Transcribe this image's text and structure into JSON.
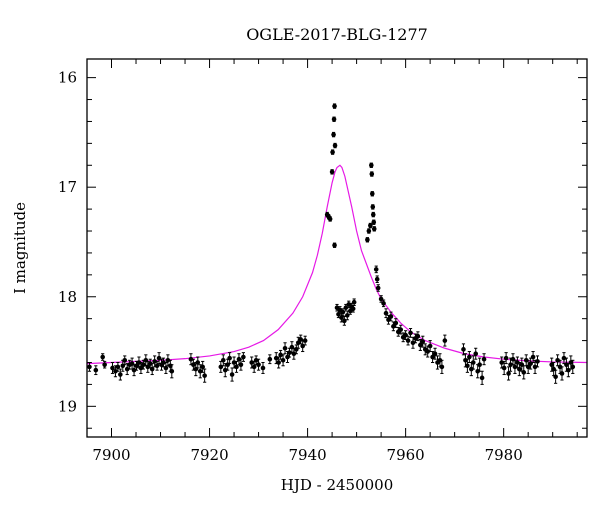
{
  "chart_data": {
    "type": "scatter",
    "title": "OGLE-2017-BLG-1277",
    "xlabel": "HJD - 2450000",
    "ylabel": "I magnitude",
    "xlim": [
      7895,
      7997
    ],
    "ylim": [
      19.28,
      15.83
    ],
    "y_inverted": true,
    "grid": false,
    "legend": "none",
    "x_ticks": [
      7900,
      7920,
      7940,
      7960,
      7980
    ],
    "y_ticks": [
      16,
      17,
      18,
      19
    ],
    "colors": {
      "data": "#000000",
      "model": "#e619e6",
      "frame": "#000000"
    },
    "series": [
      {
        "kind": "data_with_errors",
        "points": [
          [
            7895.5,
            18.64,
            0.04
          ],
          [
            7896.8,
            18.67,
            0.04
          ],
          [
            7898.2,
            18.55,
            0.03
          ],
          [
            7898.6,
            18.62,
            0.03
          ],
          [
            7900.2,
            18.65,
            0.05
          ],
          [
            7900.8,
            18.68,
            0.05
          ],
          [
            7901.3,
            18.64,
            0.04
          ],
          [
            7901.8,
            18.71,
            0.05
          ],
          [
            7902.3,
            18.63,
            0.05
          ],
          [
            7902.7,
            18.58,
            0.04
          ],
          [
            7903.2,
            18.66,
            0.05
          ],
          [
            7903.7,
            18.62,
            0.04
          ],
          [
            7904.2,
            18.61,
            0.05
          ],
          [
            7904.6,
            18.67,
            0.05
          ],
          [
            7905.1,
            18.63,
            0.04
          ],
          [
            7905.6,
            18.6,
            0.05
          ],
          [
            7906.0,
            18.65,
            0.05
          ],
          [
            7906.5,
            18.62,
            0.04
          ],
          [
            7907.0,
            18.58,
            0.05
          ],
          [
            7907.4,
            18.64,
            0.05
          ],
          [
            7907.9,
            18.61,
            0.04
          ],
          [
            7908.3,
            18.66,
            0.05
          ],
          [
            7908.8,
            18.59,
            0.05
          ],
          [
            7909.3,
            18.63,
            0.04
          ],
          [
            7909.7,
            18.56,
            0.05
          ],
          [
            7910.2,
            18.62,
            0.05
          ],
          [
            7910.6,
            18.6,
            0.04
          ],
          [
            7911.1,
            18.65,
            0.05
          ],
          [
            7911.5,
            18.58,
            0.05
          ],
          [
            7912.0,
            18.63,
            0.05
          ],
          [
            7912.3,
            18.68,
            0.06
          ],
          [
            7916.2,
            18.57,
            0.05
          ],
          [
            7916.7,
            18.62,
            0.05
          ],
          [
            7917.2,
            18.66,
            0.06
          ],
          [
            7917.6,
            18.6,
            0.05
          ],
          [
            7918.1,
            18.68,
            0.06
          ],
          [
            7918.6,
            18.64,
            0.05
          ],
          [
            7919.0,
            18.72,
            0.06
          ],
          [
            7922.3,
            18.64,
            0.05
          ],
          [
            7922.8,
            18.58,
            0.05
          ],
          [
            7923.2,
            18.67,
            0.06
          ],
          [
            7923.7,
            18.62,
            0.05
          ],
          [
            7924.1,
            18.56,
            0.05
          ],
          [
            7924.6,
            18.71,
            0.06
          ],
          [
            7925.0,
            18.6,
            0.05
          ],
          [
            7925.5,
            18.64,
            0.05
          ],
          [
            7926.0,
            18.57,
            0.05
          ],
          [
            7926.4,
            18.62,
            0.05
          ],
          [
            7926.9,
            18.55,
            0.04
          ],
          [
            7928.6,
            18.6,
            0.05
          ],
          [
            7929.1,
            18.64,
            0.05
          ],
          [
            7929.5,
            18.58,
            0.04
          ],
          [
            7930.0,
            18.62,
            0.05
          ],
          [
            7930.9,
            18.65,
            0.05
          ],
          [
            7932.3,
            18.57,
            0.04
          ],
          [
            7933.6,
            18.56,
            0.05
          ],
          [
            7934.1,
            18.6,
            0.05
          ],
          [
            7934.5,
            18.53,
            0.04
          ],
          [
            7935.0,
            18.58,
            0.05
          ],
          [
            7935.4,
            18.47,
            0.05
          ],
          [
            7935.9,
            18.55,
            0.05
          ],
          [
            7936.3,
            18.51,
            0.04
          ],
          [
            7936.8,
            18.46,
            0.05
          ],
          [
            7937.2,
            18.52,
            0.05
          ],
          [
            7937.7,
            18.48,
            0.04
          ],
          [
            7938.1,
            18.42,
            0.05
          ],
          [
            7938.6,
            18.39,
            0.04
          ],
          [
            7939.0,
            18.45,
            0.05
          ],
          [
            7939.5,
            18.4,
            0.04
          ],
          [
            7944.0,
            17.25,
            0.02
          ],
          [
            7944.3,
            17.27,
            0.02
          ],
          [
            7944.6,
            17.29,
            0.02
          ],
          [
            7945.0,
            16.86,
            0.02
          ],
          [
            7945.1,
            16.68,
            0.02
          ],
          [
            7945.3,
            16.52,
            0.02
          ],
          [
            7945.4,
            16.38,
            0.02
          ],
          [
            7945.5,
            16.26,
            0.02
          ],
          [
            7945.6,
            16.62,
            0.02
          ],
          [
            7945.5,
            17.53,
            0.02
          ],
          [
            7946.0,
            18.1,
            0.03
          ],
          [
            7946.3,
            18.16,
            0.03
          ],
          [
            7946.6,
            18.12,
            0.03
          ],
          [
            7946.9,
            18.19,
            0.04
          ],
          [
            7947.2,
            18.14,
            0.03
          ],
          [
            7947.5,
            18.22,
            0.04
          ],
          [
            7947.8,
            18.1,
            0.03
          ],
          [
            7948.1,
            18.17,
            0.04
          ],
          [
            7948.4,
            18.07,
            0.03
          ],
          [
            7948.7,
            18.13,
            0.03
          ],
          [
            7949.0,
            18.09,
            0.03
          ],
          [
            7949.3,
            18.11,
            0.03
          ],
          [
            7949.5,
            18.05,
            0.03
          ],
          [
            7952.2,
            17.48,
            0.02
          ],
          [
            7952.5,
            17.4,
            0.02
          ],
          [
            7952.8,
            17.35,
            0.02
          ],
          [
            7953.0,
            16.8,
            0.02
          ],
          [
            7953.1,
            16.88,
            0.02
          ],
          [
            7953.2,
            17.06,
            0.02
          ],
          [
            7953.3,
            17.18,
            0.02
          ],
          [
            7953.4,
            17.25,
            0.02
          ],
          [
            7953.5,
            17.32,
            0.02
          ],
          [
            7953.6,
            17.38,
            0.02
          ],
          [
            7954.0,
            17.75,
            0.03
          ],
          [
            7954.2,
            17.84,
            0.03
          ],
          [
            7954.4,
            17.92,
            0.03
          ],
          [
            7955.0,
            18.02,
            0.03
          ],
          [
            7955.5,
            18.06,
            0.03
          ],
          [
            7956.0,
            18.15,
            0.04
          ],
          [
            7956.5,
            18.21,
            0.04
          ],
          [
            7957.0,
            18.18,
            0.04
          ],
          [
            7957.5,
            18.27,
            0.04
          ],
          [
            7958.0,
            18.24,
            0.04
          ],
          [
            7958.5,
            18.32,
            0.04
          ],
          [
            7959.0,
            18.3,
            0.04
          ],
          [
            7959.5,
            18.37,
            0.04
          ],
          [
            7960.0,
            18.35,
            0.04
          ],
          [
            7960.5,
            18.4,
            0.04
          ],
          [
            7961.0,
            18.33,
            0.04
          ],
          [
            7961.5,
            18.42,
            0.05
          ],
          [
            7962.0,
            18.38,
            0.04
          ],
          [
            7962.5,
            18.36,
            0.04
          ],
          [
            7963.0,
            18.44,
            0.05
          ],
          [
            7963.5,
            18.41,
            0.05
          ],
          [
            7964.0,
            18.48,
            0.05
          ],
          [
            7964.5,
            18.5,
            0.05
          ],
          [
            7965.0,
            18.45,
            0.05
          ],
          [
            7965.5,
            18.55,
            0.05
          ],
          [
            7966.0,
            18.52,
            0.05
          ],
          [
            7966.5,
            18.6,
            0.06
          ],
          [
            7967.0,
            18.58,
            0.06
          ],
          [
            7967.4,
            18.64,
            0.06
          ],
          [
            7968.0,
            18.4,
            0.05
          ],
          [
            7971.8,
            18.48,
            0.05
          ],
          [
            7972.2,
            18.58,
            0.06
          ],
          [
            7972.6,
            18.63,
            0.06
          ],
          [
            7973.0,
            18.55,
            0.05
          ],
          [
            7973.4,
            18.66,
            0.06
          ],
          [
            7973.8,
            18.6,
            0.06
          ],
          [
            7974.3,
            18.52,
            0.05
          ],
          [
            7974.7,
            18.68,
            0.06
          ],
          [
            7975.1,
            18.62,
            0.06
          ],
          [
            7975.6,
            18.74,
            0.06
          ],
          [
            7976.0,
            18.57,
            0.05
          ],
          [
            7979.6,
            18.6,
            0.05
          ],
          [
            7980.1,
            18.65,
            0.06
          ],
          [
            7980.5,
            18.56,
            0.05
          ],
          [
            7981.0,
            18.7,
            0.06
          ],
          [
            7981.4,
            18.62,
            0.06
          ],
          [
            7981.9,
            18.57,
            0.05
          ],
          [
            7982.3,
            18.64,
            0.06
          ],
          [
            7982.8,
            18.6,
            0.05
          ],
          [
            7983.2,
            18.66,
            0.06
          ],
          [
            7983.7,
            18.62,
            0.06
          ],
          [
            7984.1,
            18.69,
            0.06
          ],
          [
            7984.6,
            18.58,
            0.05
          ],
          [
            7985.0,
            18.64,
            0.06
          ],
          [
            7985.5,
            18.61,
            0.05
          ],
          [
            7986.0,
            18.55,
            0.05
          ],
          [
            7986.4,
            18.64,
            0.06
          ],
          [
            7986.9,
            18.59,
            0.05
          ],
          [
            7989.8,
            18.62,
            0.06
          ],
          [
            7990.2,
            18.66,
            0.06
          ],
          [
            7990.6,
            18.73,
            0.06
          ],
          [
            7991.0,
            18.58,
            0.05
          ],
          [
            7991.5,
            18.64,
            0.06
          ],
          [
            7991.9,
            18.7,
            0.06
          ],
          [
            7992.3,
            18.56,
            0.05
          ],
          [
            7992.8,
            18.62,
            0.06
          ],
          [
            7993.2,
            18.67,
            0.06
          ],
          [
            7993.7,
            18.6,
            0.06
          ],
          [
            7994.1,
            18.64,
            0.06
          ]
        ]
      },
      {
        "kind": "model_curve",
        "points": [
          [
            7895,
            18.61
          ],
          [
            7900,
            18.6
          ],
          [
            7905,
            18.59
          ],
          [
            7910,
            18.58
          ],
          [
            7915,
            18.565
          ],
          [
            7920,
            18.54
          ],
          [
            7925,
            18.5
          ],
          [
            7928,
            18.46
          ],
          [
            7931,
            18.4
          ],
          [
            7934,
            18.3
          ],
          [
            7937,
            18.15
          ],
          [
            7939,
            18.0
          ],
          [
            7941,
            17.78
          ],
          [
            7942,
            17.62
          ],
          [
            7943,
            17.42
          ],
          [
            7944,
            17.18
          ],
          [
            7945,
            16.96
          ],
          [
            7945.6,
            16.86
          ],
          [
            7946,
            16.82
          ],
          [
            7946.6,
            16.8
          ],
          [
            7947,
            16.82
          ],
          [
            7947.6,
            16.9
          ],
          [
            7948,
            16.98
          ],
          [
            7949,
            17.18
          ],
          [
            7950,
            17.4
          ],
          [
            7951,
            17.58
          ],
          [
            7952,
            17.7
          ],
          [
            7953,
            17.82
          ],
          [
            7954,
            17.93
          ],
          [
            7955,
            18.02
          ],
          [
            7957,
            18.14
          ],
          [
            7959,
            18.24
          ],
          [
            7961,
            18.32
          ],
          [
            7964,
            18.4
          ],
          [
            7968,
            18.47
          ],
          [
            7972,
            18.52
          ],
          [
            7976,
            18.55
          ],
          [
            7980,
            18.57
          ],
          [
            7985,
            18.585
          ],
          [
            7990,
            18.595
          ],
          [
            7997,
            18.6
          ]
        ]
      }
    ]
  }
}
